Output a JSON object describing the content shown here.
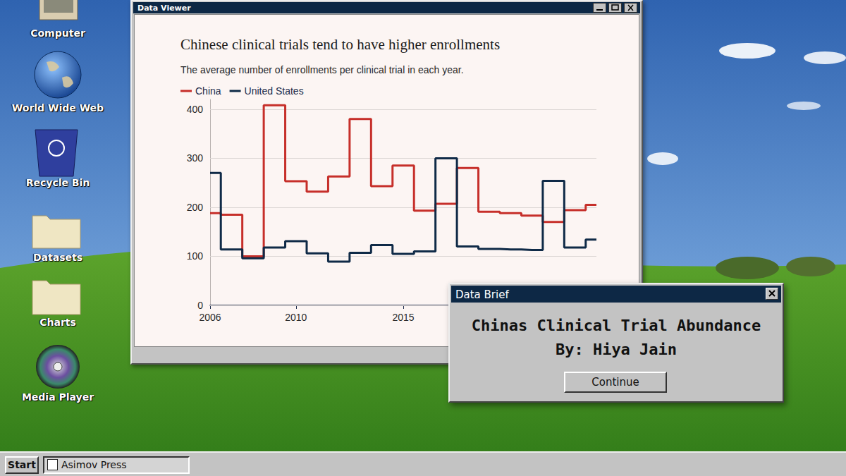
{
  "window": {
    "title": "Data Viewer"
  },
  "desktop_icons": [
    "Computer",
    "World Wide Web",
    "Recycle Bin",
    "Datasets",
    "Charts",
    "Media Player"
  ],
  "dialog": {
    "title": "Data Brief",
    "heading": "Chinas Clinical Trial Abundance",
    "byline": "By: Hiya Jain",
    "button": "Continue"
  },
  "taskbar": {
    "start": "Start",
    "items": [
      "Asimov Press"
    ]
  },
  "chart_data": {
    "type": "line",
    "title": "Chinese clinical trials tend to have higher enrollments",
    "subtitle": "The average number of enrollments per clinical trial in each year.",
    "x": [
      2006,
      2007,
      2008,
      2009,
      2010,
      2011,
      2012,
      2013,
      2014,
      2015,
      2016,
      2017,
      2018,
      2019,
      2020,
      2021,
      2022,
      2023,
      2024
    ],
    "series": [
      {
        "name": "China",
        "color": "#c62f2a",
        "values": [
          188,
          185,
          100,
          408,
          253,
          232,
          263,
          380,
          243,
          285,
          193,
          207,
          280,
          191,
          188,
          183,
          170,
          194,
          205
        ]
      },
      {
        "name": "United States",
        "color": "#0f2a47",
        "values": [
          270,
          114,
          96,
          118,
          131,
          106,
          89,
          107,
          123,
          105,
          110,
          300,
          120,
          115,
          114,
          113,
          254,
          118,
          134
        ]
      }
    ],
    "xlim": [
      2006,
      2024
    ],
    "xticks": [
      2006,
      2010,
      2015
    ],
    "ylim": [
      0,
      420
    ],
    "yticks": [
      0,
      100,
      200,
      300,
      400
    ],
    "grid": true,
    "legend": "top-left",
    "line_style": "step"
  }
}
